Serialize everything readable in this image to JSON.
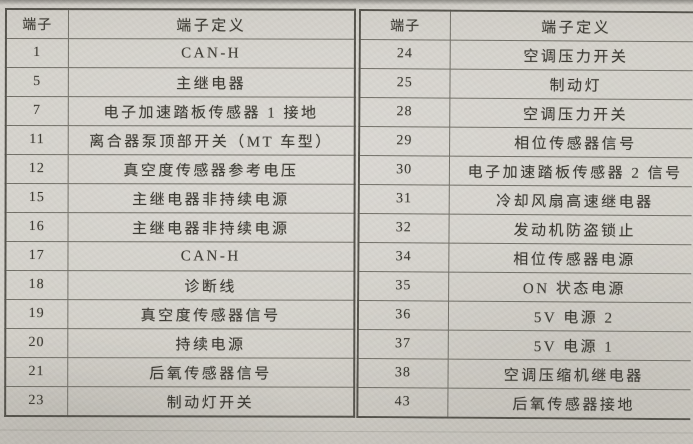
{
  "page": {
    "colors": {
      "paper": "#d2cfc8",
      "line": "#716f67",
      "line-dark": "#54524b",
      "text": "#3c3a33",
      "edge": "#8e8c86"
    }
  },
  "left_table": {
    "header_terminal": "端子",
    "header_definition": "端子定义",
    "rows": [
      {
        "terminal": "1",
        "definition": "CAN-H"
      },
      {
        "terminal": "5",
        "definition": "主继电器"
      },
      {
        "terminal": "7",
        "definition": "电子加速踏板传感器 1 接地"
      },
      {
        "terminal": "11",
        "definition": "离合器泵顶部开关（MT 车型）"
      },
      {
        "terminal": "12",
        "definition": "真空度传感器参考电压"
      },
      {
        "terminal": "15",
        "definition": "主继电器非持续电源"
      },
      {
        "terminal": "16",
        "definition": "主继电器非持续电源"
      },
      {
        "terminal": "17",
        "definition": "CAN-H"
      },
      {
        "terminal": "18",
        "definition": "诊断线"
      },
      {
        "terminal": "19",
        "definition": "真空度传感器信号"
      },
      {
        "terminal": "20",
        "definition": "持续电源"
      },
      {
        "terminal": "21",
        "definition": "后氧传感器信号"
      },
      {
        "terminal": "23",
        "definition": "制动灯开关"
      }
    ]
  },
  "right_table": {
    "header_terminal": "端子",
    "header_definition": "端子定义",
    "rows": [
      {
        "terminal": "24",
        "definition": "空调压力开关"
      },
      {
        "terminal": "25",
        "definition": "制动灯"
      },
      {
        "terminal": "28",
        "definition": "空调压力开关"
      },
      {
        "terminal": "29",
        "definition": "相位传感器信号"
      },
      {
        "terminal": "30",
        "definition": "电子加速踏板传感器 2 信号"
      },
      {
        "terminal": "31",
        "definition": "冷却风扇高速继电器"
      },
      {
        "terminal": "32",
        "definition": "发动机防盗锁止"
      },
      {
        "terminal": "34",
        "definition": "相位传感器电源"
      },
      {
        "terminal": "35",
        "definition": "ON 状态电源"
      },
      {
        "terminal": "36",
        "definition": "5V 电源 2"
      },
      {
        "terminal": "37",
        "definition": "5V 电源 1"
      },
      {
        "terminal": "38",
        "definition": "空调压缩机继电器"
      },
      {
        "terminal": "43",
        "definition": "后氧传感器接地"
      }
    ]
  }
}
